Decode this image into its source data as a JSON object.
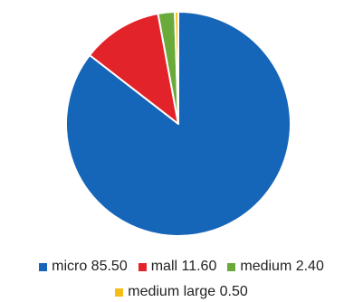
{
  "chart_data": {
    "type": "pie",
    "title": "",
    "categories": [
      "micro",
      "mall",
      "medium",
      "medium large"
    ],
    "values": [
      85.5,
      11.6,
      2.4,
      0.5
    ],
    "colors": [
      "#1565b8",
      "#e3232a",
      "#6aaa3b",
      "#f6bd16"
    ],
    "legend": {
      "placement": "bottom",
      "labels": [
        "micro 85.50",
        "mall 11.60",
        "medium 2.40",
        "medium large 0.50"
      ]
    },
    "start_angle": "12 o'clock",
    "direction": "clockwise"
  }
}
